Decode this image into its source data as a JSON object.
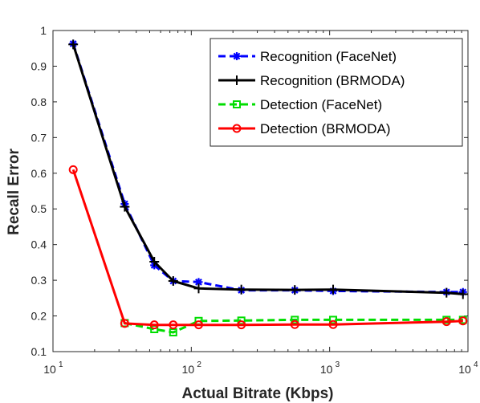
{
  "chart_data": {
    "type": "line",
    "xlabel": "Actual Bitrate (Kbps)",
    "ylabel": "Recall Error",
    "xscale": "log",
    "xlim": [
      10,
      10000
    ],
    "ylim": [
      0.1,
      1
    ],
    "xticks": [
      10,
      100,
      1000,
      10000
    ],
    "xtick_labels": [
      {
        "base": "10",
        "exp": "1"
      },
      {
        "base": "10",
        "exp": "2"
      },
      {
        "base": "10",
        "exp": "3"
      },
      {
        "base": "10",
        "exp": "4"
      }
    ],
    "yticks": [
      0.1,
      0.2,
      0.3,
      0.4,
      0.5,
      0.6,
      0.7,
      0.8,
      0.9,
      1
    ],
    "ytick_labels": [
      "0.1",
      "0.2",
      "0.3",
      "0.4",
      "0.5",
      "0.6",
      "0.7",
      "0.8",
      "0.9",
      "1"
    ],
    "grid": false,
    "legend_position": "top-right",
    "series": [
      {
        "name": "Recognition (FaceNet)",
        "color": "#0000ff",
        "line_style": "dashed",
        "marker": "asterisk",
        "x": [
          14,
          33,
          54,
          74,
          113,
          230,
          560,
          1060,
          7000,
          9200
        ],
        "y": [
          0.963,
          0.514,
          0.342,
          0.298,
          0.295,
          0.272,
          0.272,
          0.27,
          0.267,
          0.267
        ]
      },
      {
        "name": "Recognition (BRMODA)",
        "color": "#000000",
        "line_style": "solid",
        "marker": "plus",
        "x": [
          14,
          33,
          54,
          74,
          113,
          230,
          560,
          1060,
          7000,
          9200
        ],
        "y": [
          0.961,
          0.506,
          0.352,
          0.298,
          0.277,
          0.274,
          0.273,
          0.274,
          0.265,
          0.261
        ]
      },
      {
        "name": "Detection (FaceNet)",
        "color": "#00dd00",
        "line_style": "dashed",
        "marker": "square",
        "x": [
          33,
          54,
          74,
          113,
          230,
          560,
          1060,
          7000,
          9200
        ],
        "y": [
          0.18,
          0.163,
          0.154,
          0.186,
          0.187,
          0.189,
          0.189,
          0.189,
          0.189
        ]
      },
      {
        "name": "Detection (BRMODA)",
        "color": "#ff0000",
        "line_style": "solid",
        "marker": "circle",
        "x": [
          14,
          33,
          54,
          74,
          113,
          230,
          560,
          1060,
          7000,
          9200
        ],
        "y": [
          0.61,
          0.179,
          0.175,
          0.175,
          0.175,
          0.175,
          0.176,
          0.176,
          0.184,
          0.186
        ]
      }
    ]
  }
}
